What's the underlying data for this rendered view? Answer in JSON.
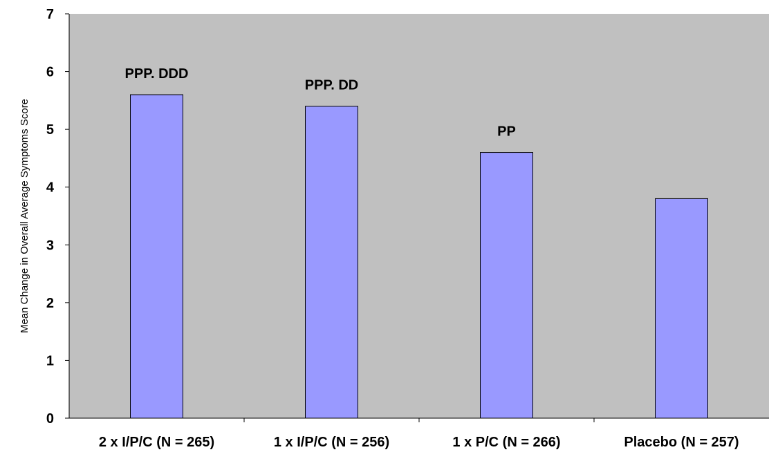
{
  "chart_data": {
    "type": "bar",
    "title": "",
    "xlabel": "",
    "ylabel": "Mean Change in Overall Average Symptoms Score",
    "ylim": [
      0,
      7
    ],
    "yticks": [
      "0",
      "1",
      "2",
      "3",
      "4",
      "5",
      "6",
      "7"
    ],
    "categories": [
      "2 x I/P/C (N = 265)",
      "1 x I/P/C (N = 256)",
      "1 x P/C (N = 266)",
      "Placebo (N = 257)"
    ],
    "values": [
      5.6,
      5.4,
      4.6,
      3.8
    ],
    "annotations": [
      "PPP. DDD",
      "PPP. DD",
      "PP",
      ""
    ],
    "grid": false,
    "legend": "none"
  },
  "colors": {
    "plot_background": "#c0c0c0",
    "bar_fill": "#9999ff",
    "bar_stroke": "#000000",
    "axis": "#000000",
    "text": "#000000"
  }
}
